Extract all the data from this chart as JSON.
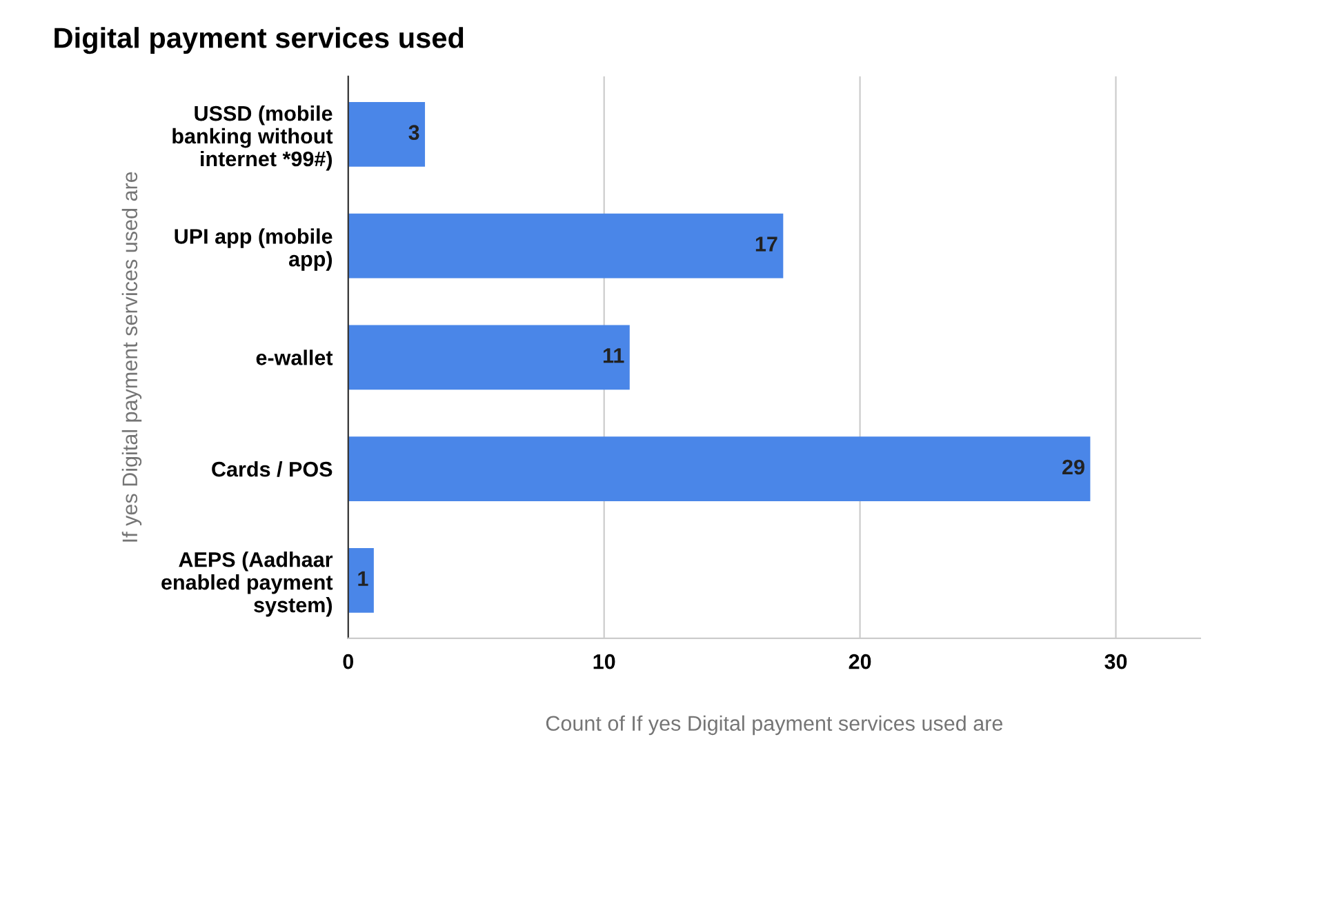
{
  "chart_data": {
    "type": "bar",
    "orientation": "horizontal",
    "title": "Digital payment services used",
    "xlabel": "Count of If yes Digital payment services used are",
    "ylabel": "If yes Digital payment services used are",
    "categories": [
      "USSD (mobile\nbanking without\ninternet *99#)",
      "UPI app (mobile\napp)",
      "e-wallet",
      "Cards / POS",
      "AEPS (Aadhaar\nenabled payment\nsystem)"
    ],
    "values": [
      3,
      17,
      11,
      29,
      1
    ],
    "color": "#4a86e8",
    "xlim": [
      0,
      33.3
    ],
    "xticks": [
      0,
      10,
      20,
      30
    ],
    "grid": "x",
    "data_labels": true
  }
}
